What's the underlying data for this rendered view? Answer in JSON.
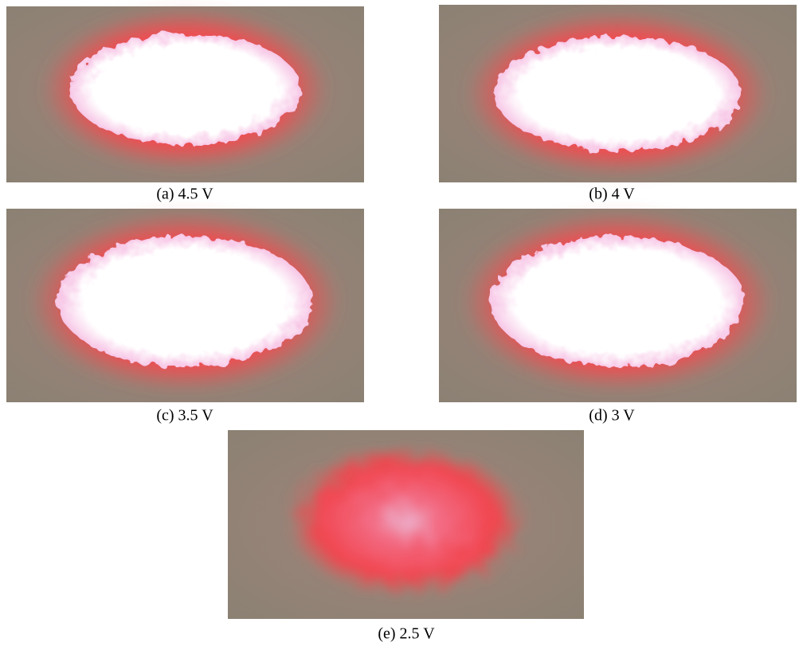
{
  "figure": {
    "panels": [
      {
        "caption": "(a) 4.5 V"
      },
      {
        "caption": "(b) 4 V"
      },
      {
        "caption": "(c) 3.5 V"
      },
      {
        "caption": "(d) 3 V"
      },
      {
        "caption": "(e) 2.5 V"
      }
    ]
  }
}
